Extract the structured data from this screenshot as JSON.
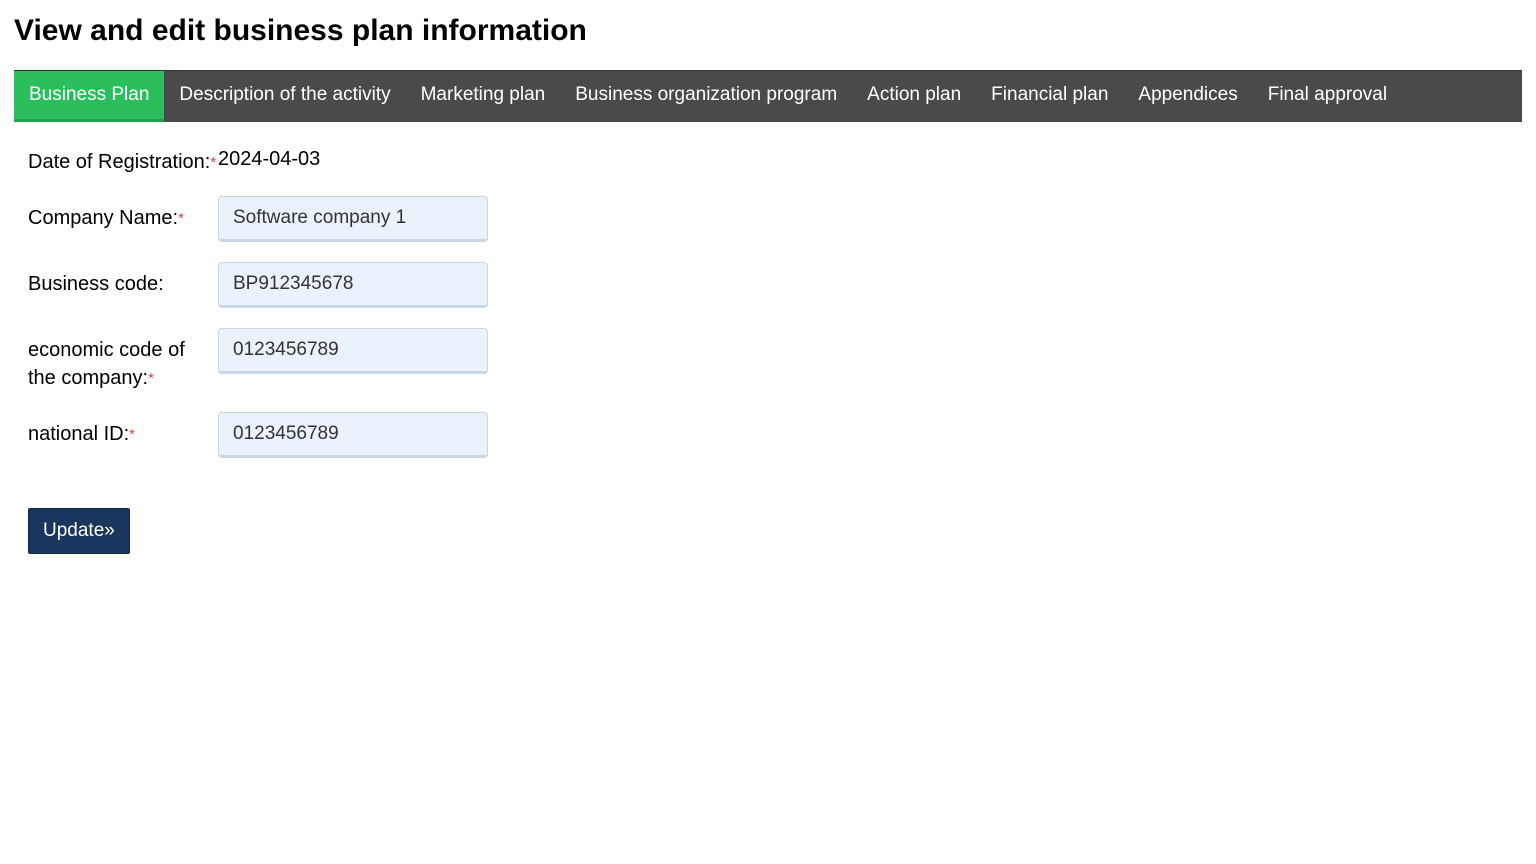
{
  "page": {
    "title": "View and edit business plan information"
  },
  "tabs": {
    "items": [
      "Business Plan",
      "Description of the activity",
      "Marketing plan",
      "Business organization program",
      "Action plan",
      "Financial plan",
      "Appendices",
      "Final approval"
    ]
  },
  "form": {
    "date_label": "Date of Registration:",
    "date_value": "2024-04-03",
    "company_label": "Company Name:",
    "company_value": "Software company 1",
    "bizcode_label": "Business code:",
    "bizcode_value": "BP912345678",
    "econcode_label": "economic code of the company:",
    "econcode_value": "0123456789",
    "nationalid_label": "national ID:",
    "nationalid_value": "0123456789",
    "update_label": "Update»",
    "required_mark": "*"
  },
  "colors": {
    "tab_bg": "#4a4a4a",
    "tab_active": "#2bbe5d",
    "input_bg": "#eaf3fb",
    "button_bg": "#1b365d",
    "required": "#d94343"
  }
}
